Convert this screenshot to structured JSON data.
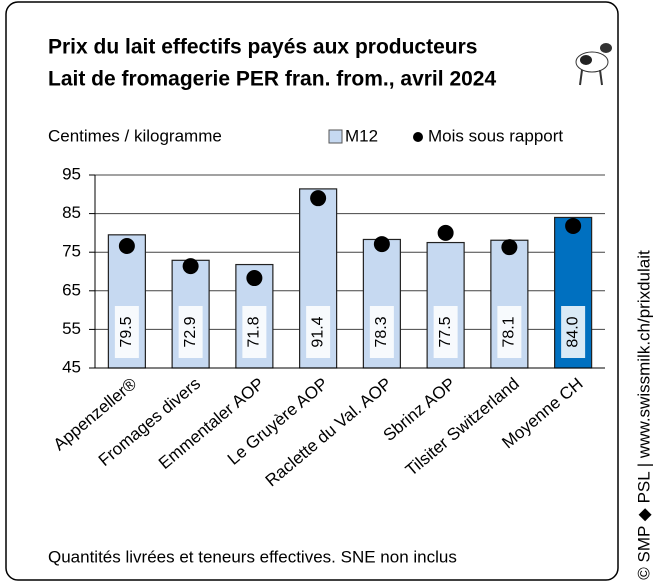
{
  "chart_data": {
    "type": "bar",
    "title": [
      "Prix du lait effectifs payés aux producteurs",
      "Lait de fromagerie PER fran. from., avril 2024"
    ],
    "y_label": "Centimes / kilogramme",
    "footer": "Quantités livrées et teneurs effectives. SNE non inclus",
    "source": "© SMP ◆ PSL | www.swissmilk.ch/prixdulait",
    "categories": [
      "Appenzeller®",
      "Fromages divers",
      "Emmentaler AOP",
      "Le Gruyère AOP",
      "Raclette du Val. AOP",
      "Sbrinz AOP",
      "Tilsiter Switzerland",
      "Moyenne CH"
    ],
    "series": [
      {
        "name": "M12",
        "type": "bar",
        "colors": [
          "#c6d9f1",
          "#c6d9f1",
          "#c6d9f1",
          "#c6d9f1",
          "#c6d9f1",
          "#c6d9f1",
          "#c6d9f1",
          "#0070c0"
        ],
        "values": [
          79.5,
          72.9,
          71.8,
          91.4,
          78.3,
          77.5,
          78.1,
          84.0
        ],
        "value_labels": [
          "79.5",
          "72.9",
          "71.8",
          "91.4",
          "78.3",
          "77.5",
          "78.1",
          "84.0"
        ]
      },
      {
        "name": "Mois sous rapport",
        "type": "marker",
        "color": "#000000",
        "values": [
          76.6,
          71.4,
          68.3,
          89.0,
          77.1,
          80.0,
          76.3,
          81.8
        ]
      }
    ],
    "ylim": [
      45,
      95
    ],
    "yticks": [
      45,
      55,
      65,
      75,
      85,
      95
    ],
    "grid": true
  }
}
